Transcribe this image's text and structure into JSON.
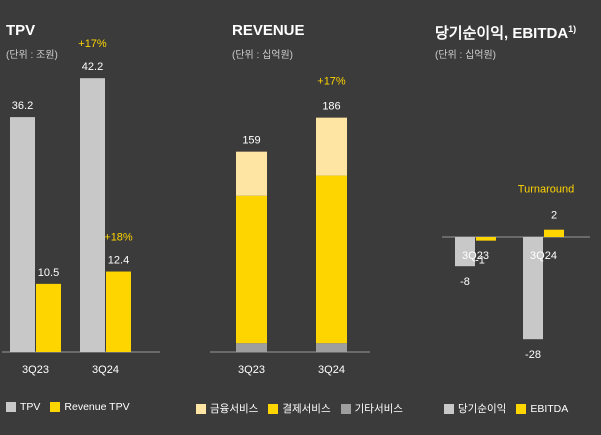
{
  "colors": {
    "grey_bar": "#c8c8c8",
    "yellow": "#ffd500",
    "light_yellow": "#ffe5a3",
    "dark_grey": "#9e9e9e",
    "growth": "#ffd500",
    "axis": "#9a9a9a"
  },
  "panels": {
    "tpv": {
      "title": "TPV",
      "unit": "(단위 : 조원)"
    },
    "revenue": {
      "title": "REVENUE",
      "unit": "(단위 : 십억원)"
    },
    "profit": {
      "title": "당기순이익, EBITDA",
      "title_sup": "1)",
      "unit": "(단위 : 십억원)"
    }
  },
  "chart_data": [
    {
      "type": "bar",
      "categories": [
        "3Q23",
        "3Q24"
      ],
      "series": [
        {
          "name": "TPV",
          "values": [
            36.2,
            42.2
          ],
          "color": "#c8c8c8"
        },
        {
          "name": "Revenue TPV",
          "values": [
            10.5,
            12.4
          ],
          "color": "#ffd500"
        }
      ],
      "annotations": [
        {
          "series": "TPV",
          "category": "3Q24",
          "text": "+17%"
        },
        {
          "series": "Revenue TPV",
          "category": "3Q24",
          "text": "+18%"
        }
      ],
      "labels": {
        "TPV": [
          "36.2",
          "42.2"
        ],
        "Revenue TPV": [
          "10.5",
          "12.4"
        ]
      },
      "ylim": [
        0,
        45
      ]
    },
    {
      "type": "bar",
      "stacked": true,
      "categories": [
        "3Q23",
        "3Q24"
      ],
      "totals": [
        159,
        186
      ],
      "total_labels": [
        "159",
        "186"
      ],
      "series": [
        {
          "name": "기타서비스",
          "values": [
            7,
            7
          ],
          "color": "#9e9e9e"
        },
        {
          "name": "결제서비스",
          "values": [
            117,
            133
          ],
          "color": "#ffd500"
        },
        {
          "name": "금융서비스",
          "values": [
            35,
            46
          ],
          "color": "#ffe5a3"
        }
      ],
      "legend_order": [
        "금융서비스",
        "결제서비스",
        "기타서비스"
      ],
      "annotations": [
        {
          "category": "3Q24",
          "text": "+17%"
        }
      ],
      "ylim": [
        0,
        200
      ]
    },
    {
      "type": "bar",
      "categories": [
        "3Q23",
        "3Q24"
      ],
      "series": [
        {
          "name": "당기순이익",
          "values": [
            -8,
            -28
          ],
          "color": "#c8c8c8"
        },
        {
          "name": "EBITDA",
          "values": [
            -1,
            2
          ],
          "color": "#ffd500"
        }
      ],
      "labels": {
        "당기순이익": [
          "-8",
          "-28"
        ],
        "EBITDA": [
          "-1",
          "2"
        ]
      },
      "annotations": [
        {
          "series": "EBITDA",
          "category": "3Q24",
          "text": "Turnaround"
        }
      ],
      "ylim": [
        -30,
        5
      ]
    }
  ]
}
